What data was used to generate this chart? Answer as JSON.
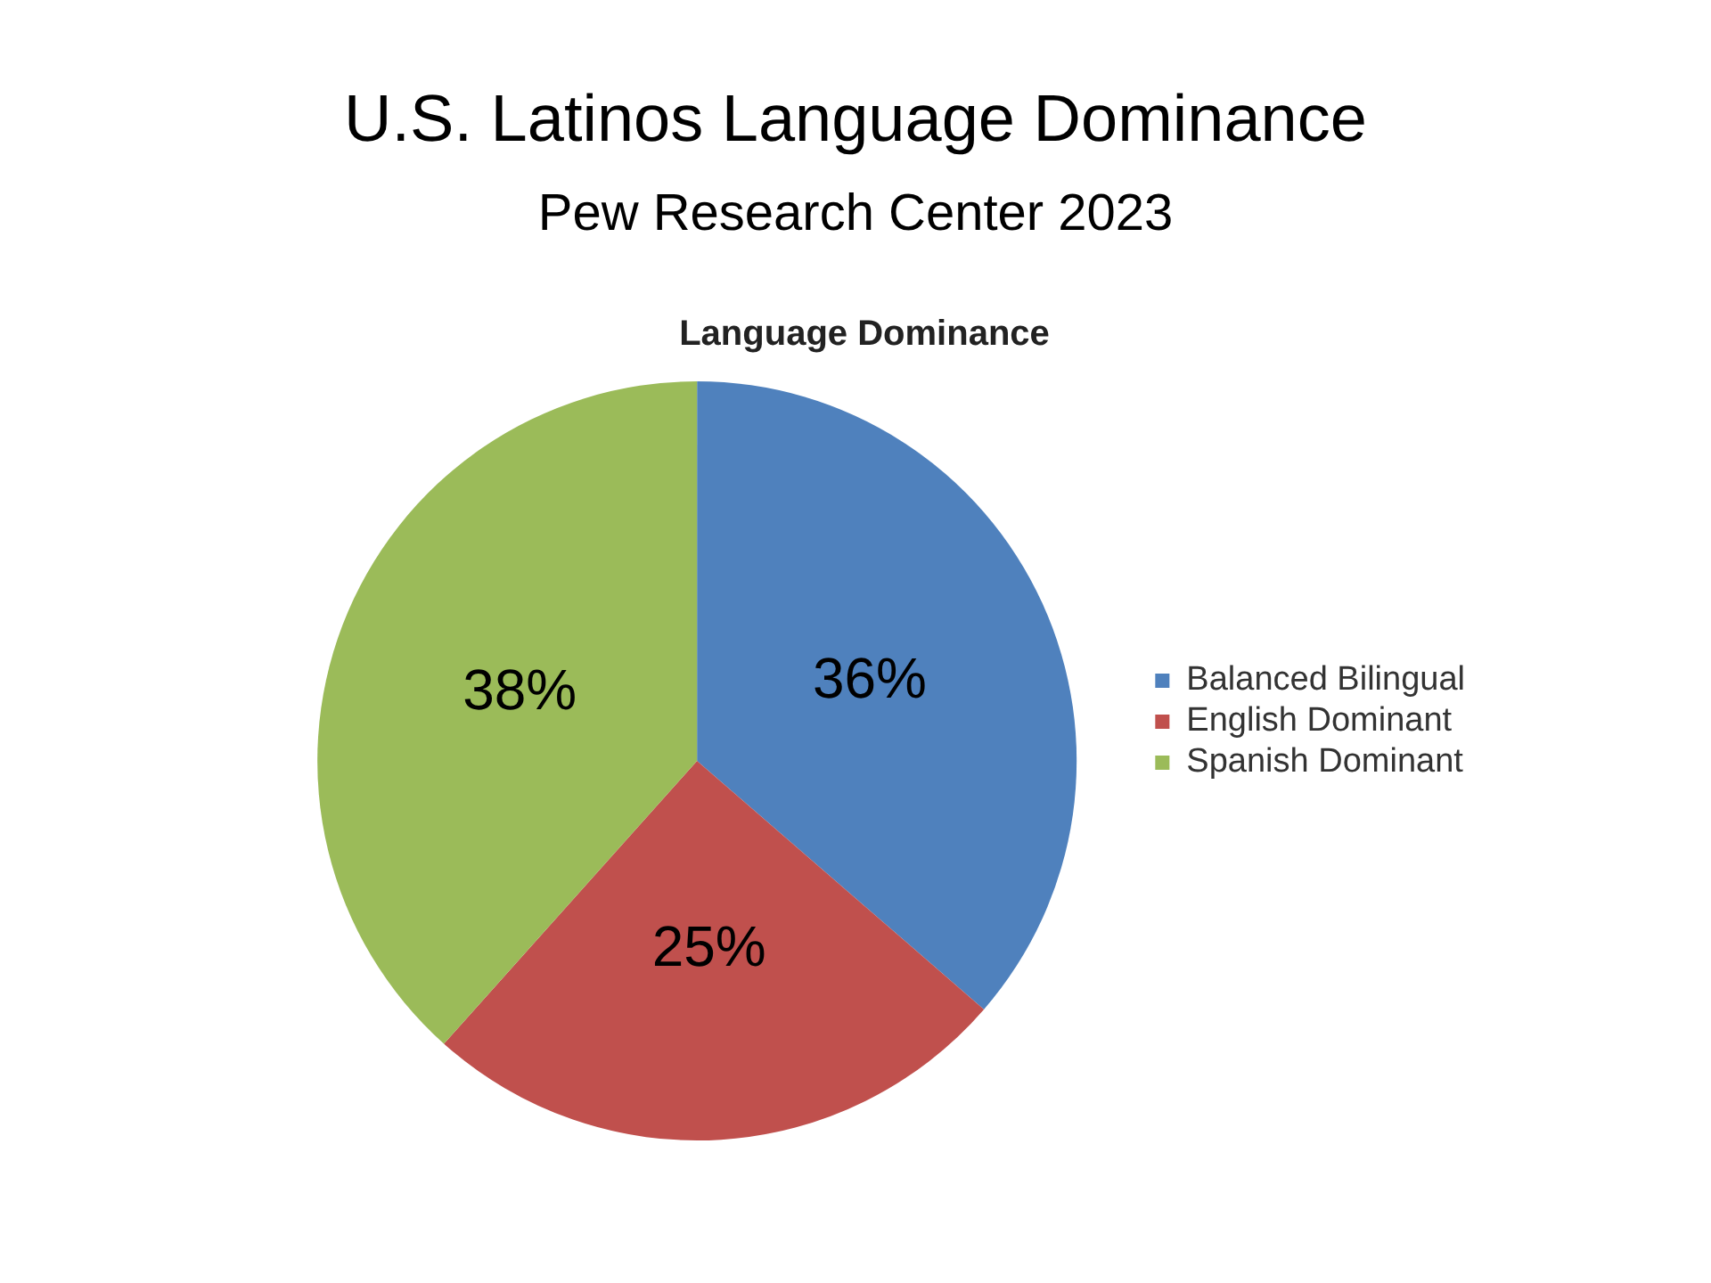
{
  "chart_data": {
    "type": "pie",
    "title": "Language Dominance",
    "annotations": [
      "U.S. Latinos Language Dominance",
      "Pew Research Center 2023"
    ],
    "categories": [
      "Balanced Bilingual",
      "English Dominant",
      "Spanish Dominant"
    ],
    "values": [
      36,
      25,
      38
    ],
    "colors": [
      "#4f81bd",
      "#c0504d",
      "#9bbb59"
    ],
    "value_labels": [
      "36%",
      "25%",
      "38%"
    ],
    "legend": "right"
  }
}
